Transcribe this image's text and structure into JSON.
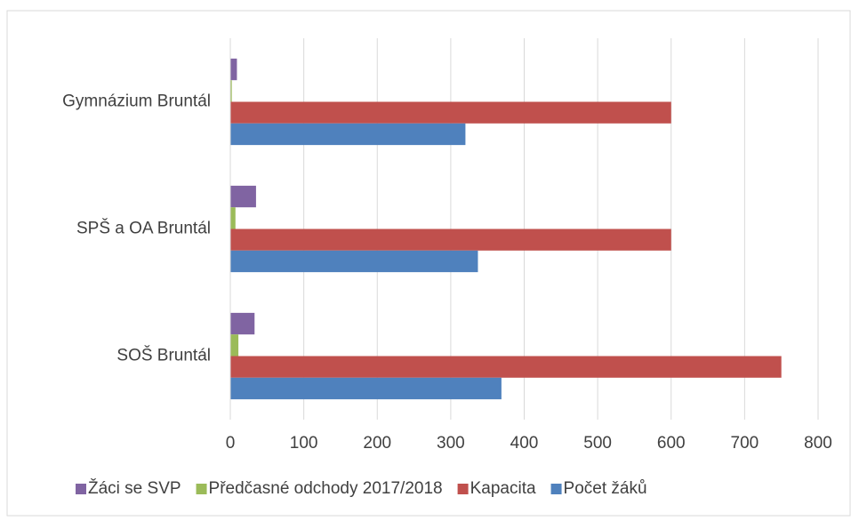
{
  "chart_data": {
    "type": "hbar",
    "categories": [
      "Gymnázium Bruntál",
      "SPŠ a OA Bruntál",
      "SOŠ Bruntál"
    ],
    "series": [
      {
        "name": "Žáci se SVP",
        "color": "#8064a2",
        "values": [
          9,
          35,
          33
        ]
      },
      {
        "name": "Předčasné odchody 2017/2018",
        "color": "#9bbb59",
        "values": [
          2,
          7,
          11
        ]
      },
      {
        "name": "Kapacita",
        "color": "#c0504d",
        "values": [
          600,
          600,
          750
        ]
      },
      {
        "name": "Počet žáků",
        "color": "#4f81bd",
        "values": [
          320,
          337,
          369
        ]
      }
    ],
    "xlim": [
      0,
      800
    ],
    "xticks": [
      0,
      100,
      200,
      300,
      400,
      500,
      600,
      700,
      800
    ],
    "grid": true
  }
}
